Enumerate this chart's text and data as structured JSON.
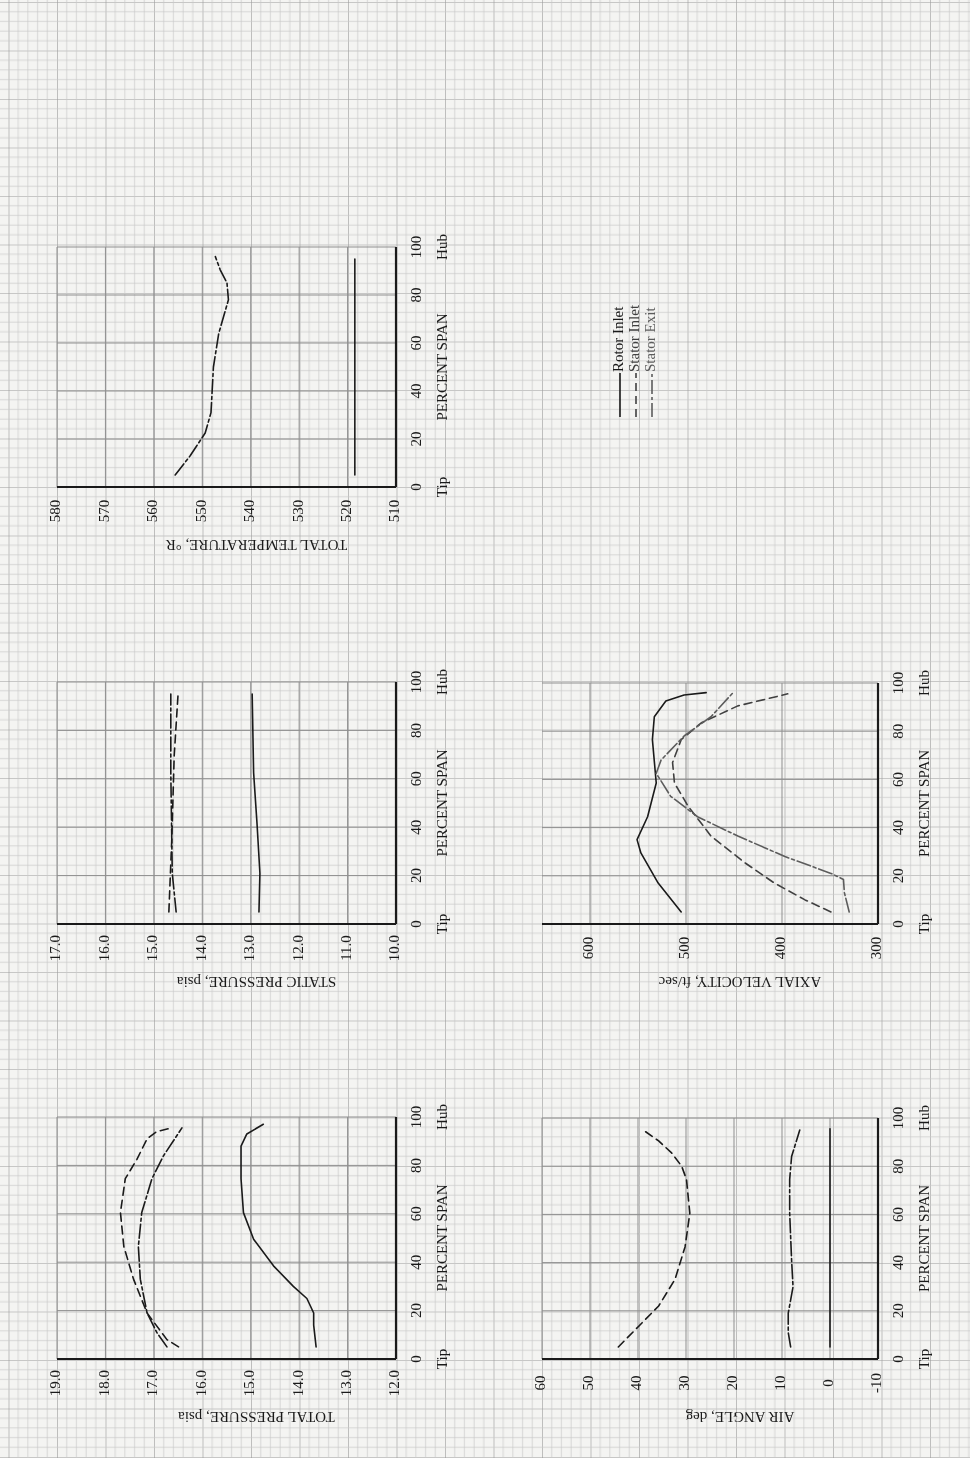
{
  "chart_data": [
    {
      "type": "line",
      "xlabel": "TOTAL PRESSURE, psia",
      "ylabel": "PERCENT SPAN",
      "ylim": [
        0,
        100
      ],
      "yticks": [
        0,
        20,
        40,
        60,
        80,
        100
      ],
      "xlim": [
        19,
        12
      ],
      "xticks": [
        {
          "value": 19,
          "label": "19.0"
        },
        {
          "value": 18,
          "label": "18.0"
        },
        {
          "value": 17,
          "label": "17.0"
        },
        {
          "value": 16,
          "label": "16.0"
        },
        {
          "value": 15,
          "label": "15.0"
        },
        {
          "value": 14,
          "label": "14.0"
        },
        {
          "value": 13,
          "label": "13.0"
        },
        {
          "value": 12,
          "label": "12.0"
        }
      ],
      "grid": true,
      "annotations": [
        "Tip",
        "Hub"
      ],
      "series": [
        {
          "color": "#1a1a1a",
          "line_style": "solid",
          "values": [
            5,
            14,
            19,
            25,
            30,
            38.5,
            49.5,
            60.5,
            74.5,
            88,
            93,
            97
          ],
          "x": [
            13.65,
            13.7,
            13.7,
            13.84,
            14.12,
            14.53,
            14.94,
            15.15,
            15.2,
            15.2,
            15.08,
            14.74
          ]
        },
        {
          "color": "#1a1a1a",
          "line_style": "dashed",
          "values": [
            5,
            8,
            19,
            33,
            46.5,
            60.5,
            74.5,
            82.5,
            91,
            94,
            95.5
          ],
          "x": [
            16.49,
            16.73,
            17.14,
            17.42,
            17.62,
            17.69,
            17.59,
            17.35,
            17.14,
            16.94,
            16.63
          ]
        },
        {
          "color": "#1a1a1a",
          "line_style": "dashdot",
          "values": [
            5,
            11,
            19,
            33,
            46.5,
            60.5,
            74.5,
            84,
            95.5
          ],
          "x": [
            16.73,
            16.94,
            17.14,
            17.28,
            17.32,
            17.25,
            17.04,
            16.8,
            16.42
          ]
        }
      ]
    },
    {
      "type": "line",
      "xlabel": "STATIC PRESSURE, psia",
      "ylabel": "PERCENT SPAN",
      "ylim": [
        0,
        100
      ],
      "yticks": [
        0,
        20,
        40,
        60,
        80,
        100
      ],
      "xlim": [
        17,
        10
      ],
      "xticks": [
        {
          "value": 17,
          "label": "17.0"
        },
        {
          "value": 16,
          "label": "16.0"
        },
        {
          "value": 15,
          "label": "15.0"
        },
        {
          "value": 14,
          "label": "14.0"
        },
        {
          "value": 13,
          "label": "13.0"
        },
        {
          "value": 12,
          "label": "12.0"
        },
        {
          "value": 11,
          "label": "11.0"
        },
        {
          "value": 10,
          "label": "10.0"
        }
      ],
      "grid": true,
      "annotations": [
        "Tip",
        "Hub"
      ],
      "series": [
        {
          "color": "#1a1a1a",
          "line_style": "solid",
          "values": [
            5,
            21,
            41.5,
            62.5,
            95
          ],
          "x": [
            12.83,
            12.81,
            12.87,
            12.94,
            12.97
          ]
        },
        {
          "color": "#1a1a1a",
          "line_style": "dashed",
          "values": [
            5,
            35,
            69.5,
            95
          ],
          "x": [
            14.69,
            14.63,
            14.58,
            14.5
          ]
        },
        {
          "color": "#1a1a1a",
          "line_style": "dashdot",
          "values": [
            5,
            21,
            62.5,
            95
          ],
          "x": [
            14.54,
            14.62,
            14.65,
            14.65
          ]
        }
      ]
    },
    {
      "type": "line",
      "xlabel": "TOTAL TEMPERATURE, °R",
      "ylabel": "PERCENT SPAN",
      "ylim": [
        0,
        100
      ],
      "yticks": [
        0,
        20,
        40,
        60,
        80,
        100
      ],
      "xlim": [
        580,
        510
      ],
      "xticks": [
        580,
        570,
        560,
        550,
        540,
        530,
        520,
        510
      ],
      "grid": true,
      "annotations": [
        "Tip",
        "Hub"
      ],
      "series": [
        {
          "color": "#1a1a1a",
          "line_style": "solid",
          "values": [
            5,
            95
          ],
          "x": [
            518.5,
            518.5
          ]
        },
        {
          "color": "#1a1a1a",
          "line_style": "dashdot",
          "values": [
            5,
            13,
            22.5,
            31,
            50,
            64,
            78,
            85,
            90.5,
            96
          ],
          "x": [
            555.6,
            552.5,
            549.4,
            548.2,
            547.7,
            546.6,
            544.6,
            544.9,
            546.3,
            547.3
          ]
        }
      ]
    },
    {
      "type": "line",
      "xlabel": "AIR ANGLE, deg",
      "ylabel": "PERCENT SPAN",
      "ylim": [
        0,
        100
      ],
      "yticks": [
        0,
        20,
        40,
        60,
        80,
        100
      ],
      "xlim": [
        60,
        -10
      ],
      "xticks": [
        60,
        50,
        40,
        30,
        20,
        10,
        0,
        -10
      ],
      "grid": true,
      "annotations": [
        "Tip",
        "Hub"
      ],
      "series": [
        {
          "color": "#1a1a1a",
          "line_style": "solid",
          "values": [
            5,
            95.5
          ],
          "x": [
            0,
            0
          ]
        },
        {
          "color": "#1a1a1a",
          "line_style": "dashed",
          "values": [
            5,
            13.5,
            22,
            33,
            46.5,
            60.5,
            74.5,
            80,
            85.5,
            90.5,
            95
          ],
          "x": [
            44.1,
            39.9,
            35.7,
            32.3,
            30.2,
            29.2,
            29.9,
            30.9,
            33,
            35.7,
            38.9
          ]
        },
        {
          "color": "#1a1a1a",
          "line_style": "dashdot",
          "values": [
            5,
            11,
            19,
            30,
            41,
            60.5,
            74.5,
            84,
            95
          ],
          "x": [
            8.2,
            8.7,
            8.7,
            7.7,
            8,
            8.4,
            8.4,
            8,
            6.3
          ]
        }
      ]
    },
    {
      "type": "line",
      "xlabel": "AXIAL VELOCITY, ft/sec",
      "ylabel": "PERCENT SPAN",
      "ylim": [
        0,
        100
      ],
      "yticks": [
        0,
        20,
        40,
        60,
        80,
        100
      ],
      "xlim": [
        650,
        300
      ],
      "xticks": [
        600,
        500,
        400,
        300
      ],
      "grid": true,
      "legend": "top",
      "annotations": [
        "Tip",
        "Hub"
      ],
      "series": [
        {
          "name": "Rotor Inlet",
          "color": "#1a1a1a",
          "line_style": "solid",
          "values": [
            5,
            17,
            29.5,
            35,
            44.5,
            58.5,
            76.5,
            86,
            92.5,
            95,
            96
          ],
          "x": [
            505,
            529,
            547,
            551,
            540,
            531,
            535,
            533,
            521,
            502,
            479
          ]
        },
        {
          "name": "Stator Inlet",
          "color": "#404040",
          "line_style": "dashed",
          "values": [
            5,
            10,
            17,
            25.5,
            36.5,
            49,
            58.5,
            67,
            76.5,
            83.5,
            90.5,
            95.5
          ],
          "x": [
            349,
            376,
            408,
            439,
            474,
            498,
            512,
            514,
            505,
            484,
            446,
            394
          ]
        },
        {
          "name": "Stator Exit",
          "color": "#5c5c5c",
          "line_style": "dashdot",
          "values": [
            5,
            13,
            18.5,
            21,
            28,
            36.5,
            44.5,
            53,
            62.5,
            68,
            78,
            86,
            96
          ],
          "x": [
            330,
            335,
            336,
            349,
            397,
            446,
            488,
            516,
            531,
            526,
            502,
            474,
            451
          ]
        }
      ]
    }
  ]
}
